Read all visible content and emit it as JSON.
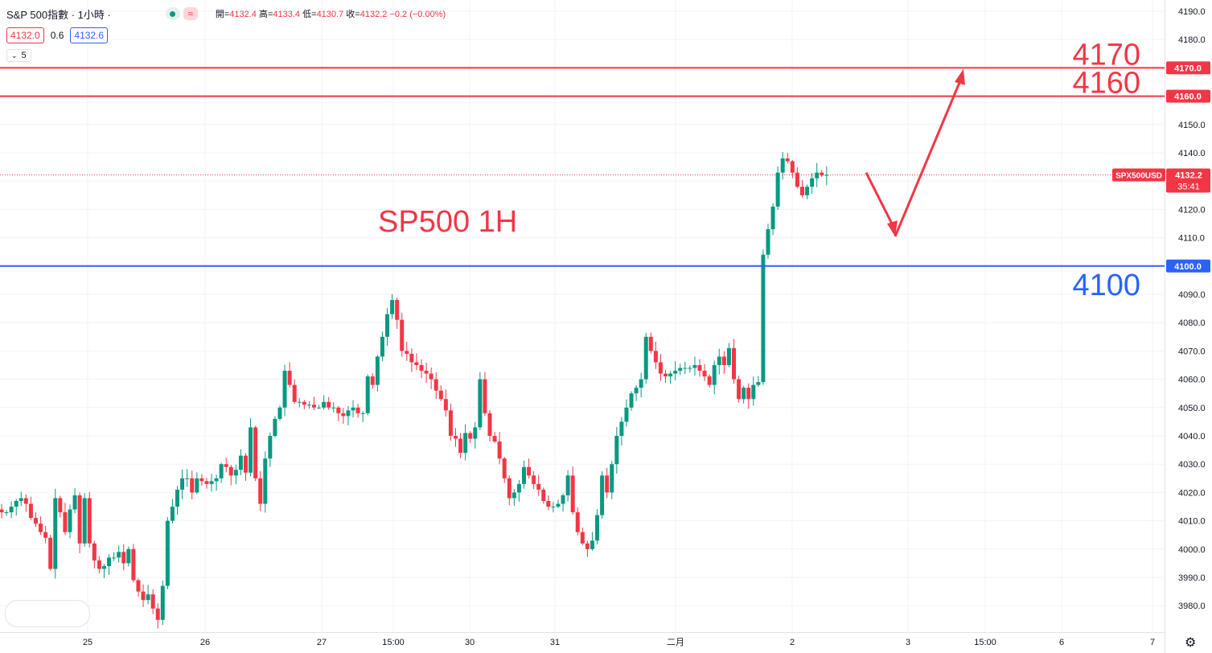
{
  "legend": {
    "title": "S&P 500指數 · 1小時 ·",
    "ohlc": {
      "open_label": "開",
      "open": "4132.4",
      "high_label": "高",
      "high": "4133.4",
      "low_label": "低",
      "low": "4130.7",
      "close_label": "收",
      "close": "4132.2",
      "change": "−0.2 (−0.00%)"
    },
    "bid": "4132.0",
    "spread": "0.6",
    "ask": "4132.6",
    "indicator_count": "5"
  },
  "price_axis": {
    "ticks": [
      "4190.0",
      "4180.0",
      "4170.0",
      "4160.0",
      "4150.0",
      "4140.0",
      "4130.0",
      "4120.0",
      "4110.0",
      "4100.0",
      "4090.0",
      "4080.0",
      "4070.0",
      "4060.0",
      "4050.0",
      "4040.0",
      "4030.0",
      "4020.0",
      "4010.0",
      "4000.0",
      "3990.0",
      "3980.0"
    ],
    "current_symbol": "SPX500USD",
    "current_price": "4132.2",
    "countdown": "35:41"
  },
  "time_axis": [
    "25",
    "26",
    "27",
    "15:00",
    "30",
    "31",
    "二月",
    "2",
    "3",
    "15:00",
    "6",
    "7"
  ],
  "chart_data": {
    "type": "candlestick",
    "title": "SP500 1H",
    "timeframe": "1H",
    "ylim": [
      3975,
      4193
    ],
    "current_price": 4132.2,
    "horizontal_levels": [
      {
        "label": "4170",
        "axis_label": "4170.0",
        "value": 4170,
        "color": "#f23645"
      },
      {
        "label": "4160",
        "axis_label": "4160.0",
        "value": 4160,
        "color": "#f23645"
      },
      {
        "label": "4100",
        "axis_label": "4100.0",
        "value": 4100,
        "color": "#2962ff"
      }
    ],
    "arrow_path_prices": [
      4133,
      4111,
      4169
    ],
    "close_path": [
      4013,
      4013,
      4015,
      4017,
      4018,
      4016,
      4011,
      4009,
      4006,
      4004,
      3993,
      4018,
      4013,
      4006,
      4014,
      4019,
      4002,
      4018,
      4002,
      3996,
      3993,
      3994,
      3997,
      3997,
      3999,
      3995,
      4000,
      3989,
      3985,
      3982,
      3984,
      3979,
      3975,
      3987,
      4010,
      4015,
      4021,
      4025,
      4025,
      4020,
      4025,
      4024,
      4023,
      4024,
      4025,
      4030,
      4029,
      4026,
      4028,
      4033,
      4027,
      4043,
      4025,
      4016,
      4032,
      4040,
      4046,
      4050,
      4063,
      4058,
      4052,
      4052,
      4051,
      4051,
      4050,
      4050,
      4052,
      4050,
      4050,
      4048,
      4047,
      4049,
      4050,
      4048,
      4048,
      4061,
      4058,
      4068,
      4075,
      4083,
      4088,
      4081,
      4070,
      4069,
      4066,
      4065,
      4063,
      4062,
      4060,
      4056,
      4053,
      4049,
      4040,
      4039,
      4034,
      4041,
      4039,
      4043,
      4060,
      4048,
      4040,
      4038,
      4032,
      4025,
      4018,
      4020,
      4023,
      4029,
      4026,
      4023,
      4021,
      4017,
      4015,
      4015,
      4016,
      4019,
      4026,
      4013,
      4006,
      4002,
      4000,
      4003,
      4012,
      4026,
      4020,
      4030,
      4040,
      4045,
      4050,
      4055,
      4057,
      4060,
      4075,
      4070,
      4066,
      4062,
      4061,
      4062,
      4063,
      4064,
      4064,
      4064,
      4065,
      4063,
      4061,
      4058,
      4065,
      4068,
      4065,
      4071,
      4060,
      4053,
      4057,
      4053,
      4058,
      4059,
      4104,
      4113,
      4121,
      4133,
      4138,
      4137,
      4133,
      4128,
      4125,
      4128,
      4131,
      4133,
      4132,
      4132.2
    ]
  },
  "colors": {
    "up": "#089981",
    "down": "#f23645",
    "grid": "#f0f3fa",
    "level_red": "#f23645",
    "level_blue": "#2962ff",
    "axis_text": "#131722"
  }
}
